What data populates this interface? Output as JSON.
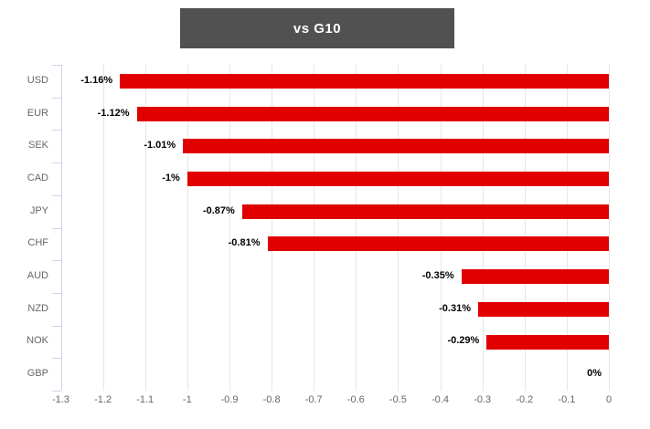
{
  "header": {
    "title": "vs G10",
    "background_color": "#515151",
    "text_color": "#ffffff"
  },
  "chart_data": {
    "type": "bar",
    "orientation": "horizontal",
    "title": "vs G10",
    "xlabel": "",
    "ylabel": "",
    "categories": [
      "USD",
      "EUR",
      "SEK",
      "CAD",
      "JPY",
      "CHF",
      "AUD",
      "NZD",
      "NOK",
      "GBP"
    ],
    "values": [
      -1.16,
      -1.12,
      -1.01,
      -1,
      -0.87,
      -0.81,
      -0.35,
      -0.31,
      -0.29,
      0
    ],
    "data_labels": [
      "-1.16%",
      "-1.12%",
      "-1.01%",
      "-1%",
      "-0.87%",
      "-0.81%",
      "-0.35%",
      "-0.31%",
      "-0.29%",
      "0%"
    ],
    "xlim": [
      -1.3,
      0
    ],
    "x_ticks": [
      -1.3,
      -1.2,
      -1.1,
      -1,
      -0.9,
      -0.8,
      -0.7,
      -0.6,
      -0.5,
      -0.4,
      -0.3,
      -0.2,
      -0.1,
      0
    ],
    "x_tick_labels": [
      "-1.3",
      "-1.2",
      "-1.1",
      "-1",
      "-0.9",
      "-0.8",
      "-0.7",
      "-0.6",
      "-0.5",
      "-0.4",
      "-0.3",
      "-0.2",
      "-0.1",
      "0"
    ],
    "grid": true,
    "legend": "none",
    "bar_color": "#e00000"
  },
  "colors": {
    "bar": "#e00000",
    "grid": "#e6e6e6",
    "axis": "#ccd6eb",
    "tick_label": "#666666",
    "category_label": "#666666",
    "data_label": "#000000",
    "title_background": "#515151"
  }
}
